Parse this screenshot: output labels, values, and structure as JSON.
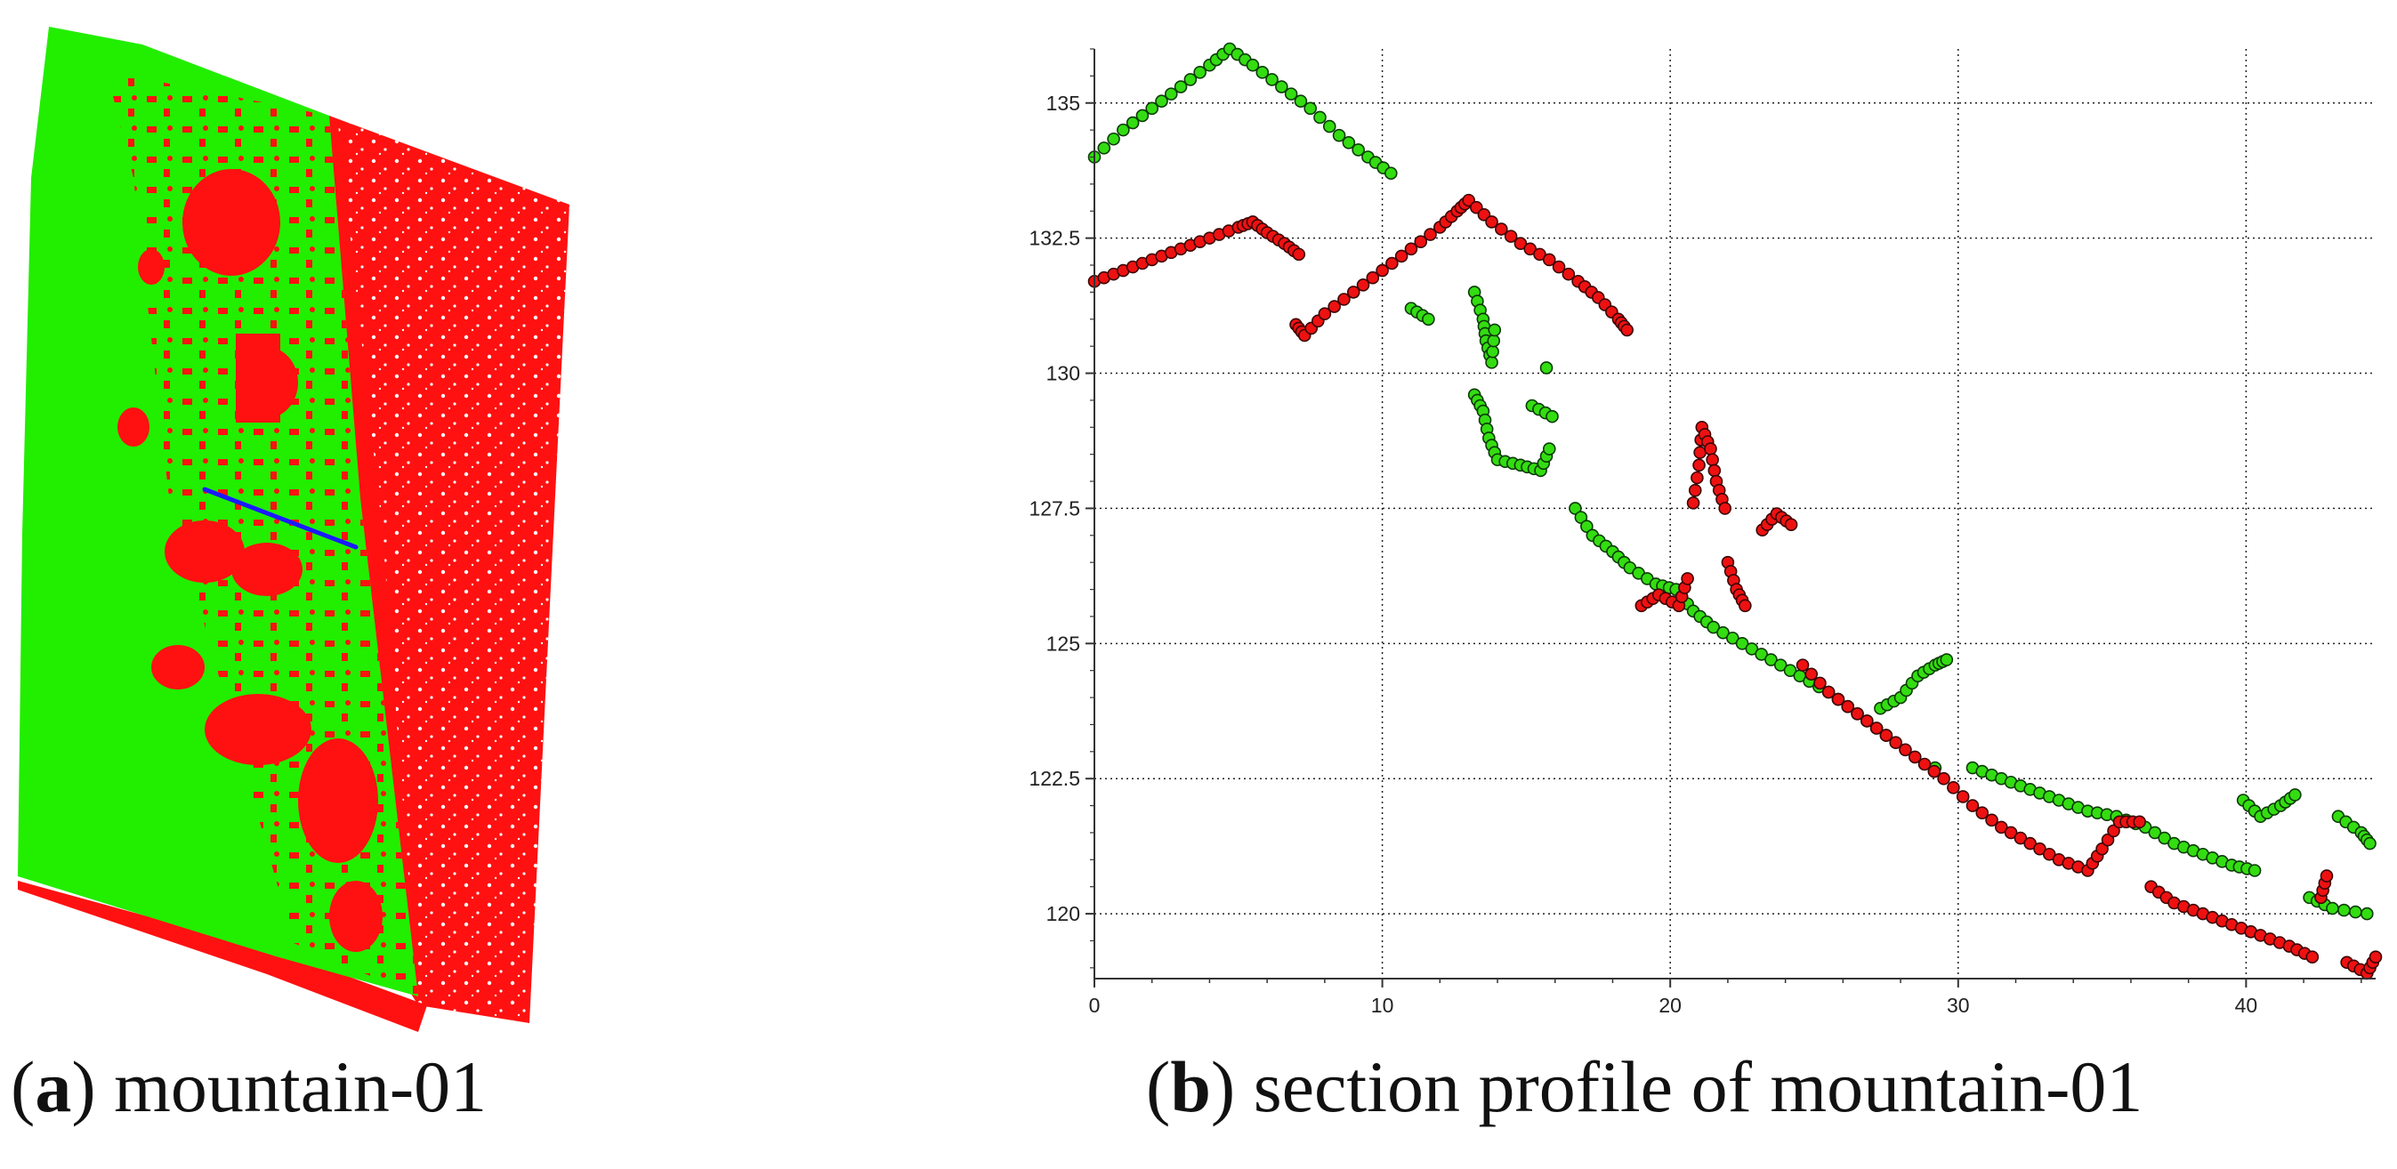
{
  "captions": {
    "a": {
      "letter": "a",
      "text": "mountain-01"
    },
    "b": {
      "letter": "b",
      "text": "section profile of mountain-01"
    }
  },
  "colors": {
    "ground": "#22ee00",
    "non_ground": "#ff1111",
    "section_line": "#1a1aff",
    "grid": "#222222"
  },
  "chart_data": [
    {
      "type": "image",
      "panel": "a",
      "description_items": [
        "point cloud colored green (ground) and red (non-ground) with a blue section line"
      ]
    },
    {
      "type": "scatter",
      "panel": "b",
      "xlim": [
        0,
        44.5
      ],
      "ylim": [
        118.8,
        136
      ],
      "xticks": [
        0,
        10,
        20,
        30,
        40
      ],
      "yticks": [
        120,
        122.5,
        125,
        127.5,
        130,
        132.5,
        135
      ],
      "grid": true,
      "series": [
        {
          "color": "green",
          "points": [
            [
              0.0,
              134.0
            ],
            [
              1.0,
              134.5
            ],
            [
              2.0,
              134.9
            ],
            [
              3.0,
              135.3
            ],
            [
              4.0,
              135.7
            ],
            [
              4.7,
              136.0
            ],
            [
              5.5,
              135.7
            ],
            [
              6.5,
              135.3
            ],
            [
              7.5,
              134.9
            ],
            [
              8.5,
              134.4
            ],
            [
              9.5,
              134.0
            ],
            [
              10.3,
              133.7
            ],
            [
              11.0,
              131.2
            ],
            [
              11.6,
              131.0
            ],
            [
              13.2,
              131.5
            ],
            [
              13.5,
              131.0
            ],
            [
              13.6,
              130.6
            ],
            [
              13.8,
              130.2
            ],
            [
              13.9,
              130.8
            ],
            [
              13.2,
              129.6
            ],
            [
              13.5,
              129.3
            ],
            [
              13.7,
              128.8
            ],
            [
              14.0,
              128.4
            ],
            [
              14.8,
              128.3
            ],
            [
              15.5,
              128.2
            ],
            [
              15.8,
              128.6
            ],
            [
              15.2,
              129.4
            ],
            [
              15.9,
              129.2
            ],
            [
              15.7,
              130.1
            ],
            [
              16.7,
              127.5
            ],
            [
              17.3,
              127.0
            ],
            [
              18.0,
              126.7
            ],
            [
              18.6,
              126.4
            ],
            [
              19.5,
              126.1
            ],
            [
              20.2,
              126.0
            ],
            [
              20.8,
              125.6
            ],
            [
              21.5,
              125.3
            ],
            [
              22.5,
              125.0
            ],
            [
              23.5,
              124.7
            ],
            [
              24.5,
              124.4
            ],
            [
              25.5,
              124.1
            ],
            [
              26.5,
              123.7
            ],
            [
              27.5,
              123.3
            ],
            [
              27.3,
              123.8
            ],
            [
              28.0,
              124.0
            ],
            [
              28.6,
              124.4
            ],
            [
              29.2,
              124.6
            ],
            [
              29.6,
              124.7
            ],
            [
              29.2,
              122.7
            ],
            [
              30.5,
              122.7
            ],
            [
              31.5,
              122.5
            ],
            [
              32.5,
              122.3
            ],
            [
              33.5,
              122.1
            ],
            [
              34.5,
              121.9
            ],
            [
              35.5,
              121.8
            ],
            [
              36.5,
              121.6
            ],
            [
              37.5,
              121.3
            ],
            [
              38.5,
              121.1
            ],
            [
              39.5,
              120.9
            ],
            [
              40.3,
              120.8
            ],
            [
              39.9,
              122.1
            ],
            [
              40.5,
              121.8
            ],
            [
              41.2,
              122.0
            ],
            [
              41.7,
              122.2
            ],
            [
              43.2,
              121.8
            ],
            [
              44.0,
              121.5
            ],
            [
              44.3,
              121.3
            ],
            [
              42.2,
              120.3
            ],
            [
              43.0,
              120.1
            ],
            [
              44.2,
              120.0
            ]
          ]
        },
        {
          "color": "red",
          "points": [
            [
              0.0,
              131.7
            ],
            [
              1.0,
              131.9
            ],
            [
              2.0,
              132.1
            ],
            [
              3.0,
              132.3
            ],
            [
              4.0,
              132.5
            ],
            [
              5.0,
              132.7
            ],
            [
              5.5,
              132.8
            ],
            [
              6.0,
              132.6
            ],
            [
              6.6,
              132.4
            ],
            [
              7.1,
              132.2
            ],
            [
              7.0,
              130.9
            ],
            [
              7.3,
              130.7
            ],
            [
              8.0,
              131.1
            ],
            [
              9.0,
              131.5
            ],
            [
              10.0,
              131.9
            ],
            [
              11.0,
              132.3
            ],
            [
              12.0,
              132.7
            ],
            [
              12.6,
              133.0
            ],
            [
              13.0,
              133.2
            ],
            [
              13.8,
              132.8
            ],
            [
              14.8,
              132.4
            ],
            [
              15.8,
              132.1
            ],
            [
              16.8,
              131.7
            ],
            [
              17.5,
              131.4
            ],
            [
              18.2,
              131.0
            ],
            [
              18.5,
              130.8
            ],
            [
              19.0,
              125.7
            ],
            [
              19.6,
              125.9
            ],
            [
              20.3,
              125.7
            ],
            [
              20.6,
              126.2
            ],
            [
              20.8,
              127.6
            ],
            [
              21.0,
              128.3
            ],
            [
              21.1,
              129.0
            ],
            [
              21.4,
              128.6
            ],
            [
              21.6,
              128.0
            ],
            [
              21.9,
              127.5
            ],
            [
              22.0,
              126.5
            ],
            [
              22.3,
              126.0
            ],
            [
              22.6,
              125.7
            ],
            [
              23.2,
              127.1
            ],
            [
              23.7,
              127.4
            ],
            [
              24.2,
              127.2
            ],
            [
              24.6,
              124.6
            ],
            [
              25.5,
              124.1
            ],
            [
              26.5,
              123.7
            ],
            [
              27.5,
              123.3
            ],
            [
              28.5,
              122.9
            ],
            [
              29.5,
              122.5
            ],
            [
              30.5,
              122.0
            ],
            [
              31.5,
              121.6
            ],
            [
              32.5,
              121.3
            ],
            [
              33.5,
              121.0
            ],
            [
              34.5,
              120.8
            ],
            [
              35.0,
              121.2
            ],
            [
              35.6,
              121.7
            ],
            [
              36.3,
              121.7
            ],
            [
              36.7,
              120.5
            ],
            [
              37.5,
              120.2
            ],
            [
              38.5,
              120.0
            ],
            [
              39.5,
              119.8
            ],
            [
              40.5,
              119.6
            ],
            [
              41.5,
              119.4
            ],
            [
              42.3,
              119.2
            ],
            [
              42.6,
              120.3
            ],
            [
              42.8,
              120.7
            ],
            [
              43.5,
              119.1
            ],
            [
              44.2,
              118.9
            ],
            [
              44.5,
              119.2
            ]
          ]
        }
      ]
    }
  ]
}
